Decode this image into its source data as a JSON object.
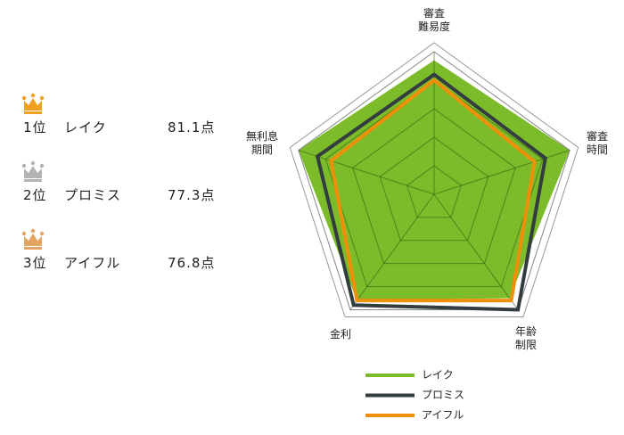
{
  "ranking": [
    {
      "rank": "1位",
      "name": "レイク",
      "score": "81.1点",
      "crown": "#f0a020"
    },
    {
      "rank": "2位",
      "name": "プロミス",
      "score": "77.3点",
      "crown": "#b3b3b3"
    },
    {
      "rank": "3位",
      "name": "アイフル",
      "score": "76.8点",
      "crown": "#e3a462"
    }
  ],
  "chart_data": {
    "type": "radar",
    "categories": [
      "審査\n難易度",
      "審査\n時間",
      "年齢\n制限",
      "金利",
      "無利息\n期間"
    ],
    "series": [
      {
        "name": "レイク",
        "color": "#7cbb2a",
        "values": [
          4.7,
          5.0,
          4.5,
          4.6,
          5.0
        ]
      },
      {
        "name": "プロミス",
        "color": "#333d40",
        "values": [
          4.2,
          4.1,
          5.0,
          4.8,
          4.3
        ]
      },
      {
        "name": "アイフル",
        "color": "#f0900a",
        "values": [
          4.0,
          3.7,
          4.6,
          4.6,
          3.8
        ]
      }
    ],
    "ylim": [
      0,
      5
    ],
    "yticks": [
      1,
      2,
      3,
      4,
      5
    ],
    "grid": true
  }
}
